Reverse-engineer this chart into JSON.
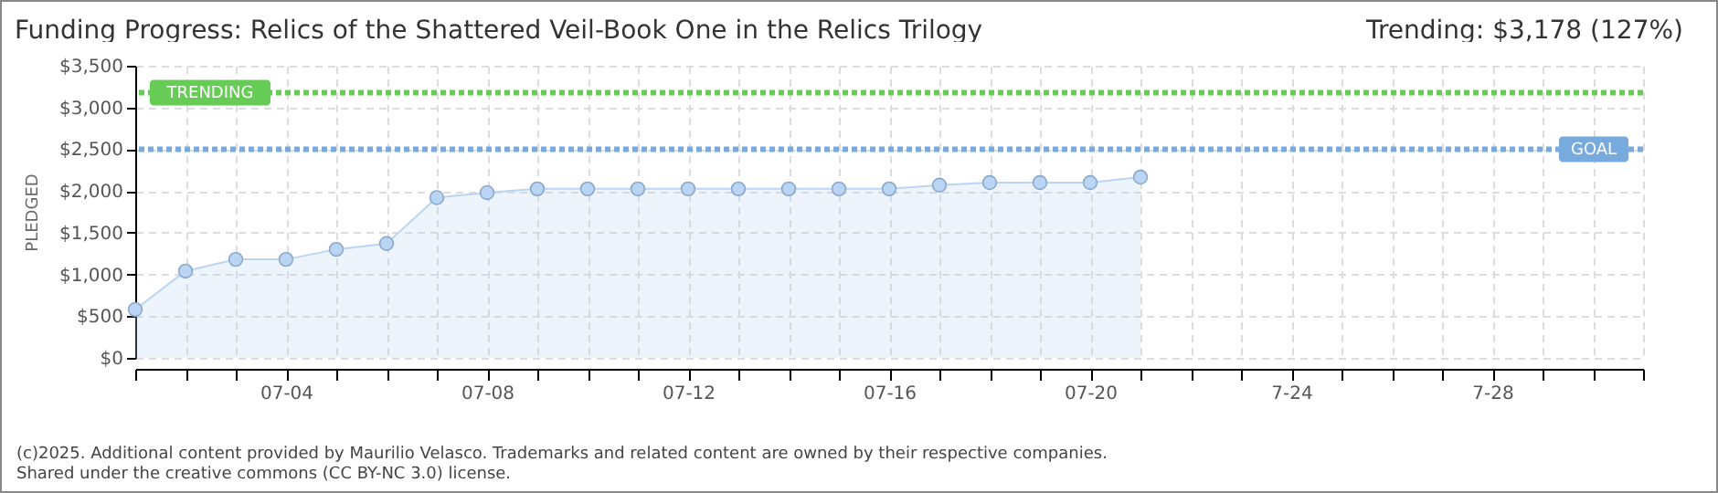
{
  "chart_data": {
    "type": "area",
    "title": "Funding Progress: Relics of the Shattered Veil-Book One in the Relics Trilogy",
    "subtitle": "Trending: $3,178 (127%)",
    "ylabel": "PLEDGED",
    "annotations": [
      "(c)2025. Additional content provided by Maurilio Velasco. Trademarks and related content are owned by their respective companies.",
      "Shared under the creative commons (CC BY-NC 3.0) license."
    ],
    "x": [
      "--07-01",
      "--07-02",
      "--07-03",
      "--07-04",
      "--07-05",
      "--07-06",
      "--07-07",
      "--07-08",
      "--07-09",
      "--07-10",
      "--07-11",
      "--07-12",
      "--07-13",
      "--07-14",
      "--07-15",
      "--07-16",
      "--07-17",
      "--07-18",
      "--07-19",
      "--07-20",
      "--07-21"
    ],
    "series": [
      {
        "color": "#b9d5f3",
        "values": [
          580,
          1040,
          1180,
          1180,
          1300,
          1370,
          1920,
          1980,
          2025,
          2025,
          2025,
          2025,
          2025,
          2025,
          2025,
          2025,
          2070,
          2100,
          2100,
          2100,
          2165
        ]
      }
    ],
    "marker": "circle",
    "xlim": [
      "--07-01",
      "--07-31"
    ],
    "xticks": [
      {
        "value": "--07-01",
        "label": null
      },
      {
        "value": "--07-02",
        "label": null
      },
      {
        "value": "--07-03",
        "label": null
      },
      {
        "value": "--07-04",
        "label": "07-04"
      },
      {
        "value": "--07-05",
        "label": null
      },
      {
        "value": "--07-06",
        "label": null
      },
      {
        "value": "--07-07",
        "label": null
      },
      {
        "value": "--07-08",
        "label": "07-08"
      },
      {
        "value": "--07-09",
        "label": null
      },
      {
        "value": "--07-10",
        "label": null
      },
      {
        "value": "--07-11",
        "label": null
      },
      {
        "value": "--07-12",
        "label": "07-12"
      },
      {
        "value": "--07-13",
        "label": null
      },
      {
        "value": "--07-14",
        "label": null
      },
      {
        "value": "--07-15",
        "label": null
      },
      {
        "value": "--07-16",
        "label": "07-16"
      },
      {
        "value": "--07-17",
        "label": null
      },
      {
        "value": "--07-18",
        "label": null
      },
      {
        "value": "--07-19",
        "label": null
      },
      {
        "value": "--07-20",
        "label": "07-20"
      },
      {
        "value": "--07-21",
        "label": null
      },
      {
        "value": "--07-22",
        "label": null
      },
      {
        "value": "--07-23",
        "label": null
      },
      {
        "value": "--07-24",
        "label": "7-24"
      },
      {
        "value": "--07-25",
        "label": null
      },
      {
        "value": "--07-26",
        "label": null
      },
      {
        "value": "--07-27",
        "label": null
      },
      {
        "value": "--07-28",
        "label": "7-28"
      },
      {
        "value": "--07-29",
        "label": null
      },
      {
        "value": "--07-30",
        "label": null
      },
      {
        "value": "--07-31",
        "label": null
      }
    ],
    "ylim": [
      0,
      3500
    ],
    "yticks": [
      {
        "value": 0,
        "label": "$0"
      },
      {
        "value": 500,
        "label": "$500"
      },
      {
        "value": 1000,
        "label": "$1,000"
      },
      {
        "value": 1500,
        "label": "$1,500"
      },
      {
        "value": 2000,
        "label": "$2,000"
      },
      {
        "value": 2500,
        "label": "$2,500"
      },
      {
        "value": 3000,
        "label": "$3,000"
      },
      {
        "value": 3500,
        "label": "$3,500"
      }
    ],
    "grid": true,
    "ref_lines": [
      {
        "axis": "y",
        "value": 3178,
        "label": "TRENDING",
        "color": "#66cc55",
        "line_style": "dotted"
      },
      {
        "axis": "y",
        "value": 2500,
        "label": "GOAL",
        "color": "#77aadd",
        "line_style": "dotted"
      }
    ]
  }
}
